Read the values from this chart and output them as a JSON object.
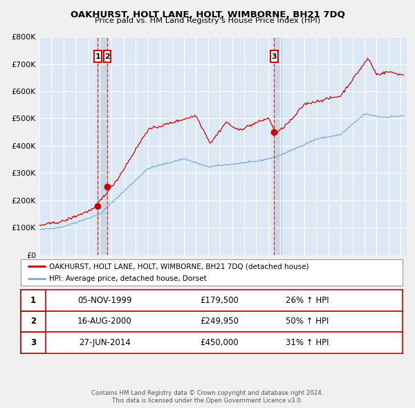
{
  "title": "OAKHURST, HOLT LANE, HOLT, WIMBORNE, BH21 7DQ",
  "subtitle": "Price paid vs. HM Land Registry's House Price Index (HPI)",
  "ylim": [
    0,
    800000
  ],
  "yticks": [
    0,
    100000,
    200000,
    300000,
    400000,
    500000,
    600000,
    700000,
    800000
  ],
  "ytick_labels": [
    "£0",
    "£100K",
    "£200K",
    "£300K",
    "£400K",
    "£500K",
    "£600K",
    "£700K",
    "£800K"
  ],
  "xlim_start": 1995.0,
  "xlim_end": 2025.5,
  "fig_bg_color": "#f0f0f0",
  "plot_bg_color": "#dce8f5",
  "grid_color": "#ffffff",
  "red_line_color": "#cc0000",
  "blue_line_color": "#7aadcf",
  "marker_color": "#cc0000",
  "transaction_dates": [
    1999.846,
    2000.627,
    2014.486
  ],
  "transaction_prices": [
    179500,
    249950,
    450000
  ],
  "transaction_labels": [
    "1",
    "2",
    "3"
  ],
  "vline_color": "#ee3333",
  "shade_color": "#b8ccde",
  "legend_line1": "OAKHURST, HOLT LANE, HOLT, WIMBORNE, BH21 7DQ (detached house)",
  "legend_line2": "HPI: Average price, detached house, Dorset",
  "table_data": [
    [
      "1",
      "05-NOV-1999",
      "£179,500",
      "26% ↑ HPI"
    ],
    [
      "2",
      "16-AUG-2000",
      "£249,950",
      "50% ↑ HPI"
    ],
    [
      "3",
      "27-JUN-2014",
      "£450,000",
      "31% ↑ HPI"
    ]
  ],
  "footer_text1": "Contains HM Land Registry data © Crown copyright and database right 2024.",
  "footer_text2": "This data is licensed under the Open Government Licence v3.0."
}
